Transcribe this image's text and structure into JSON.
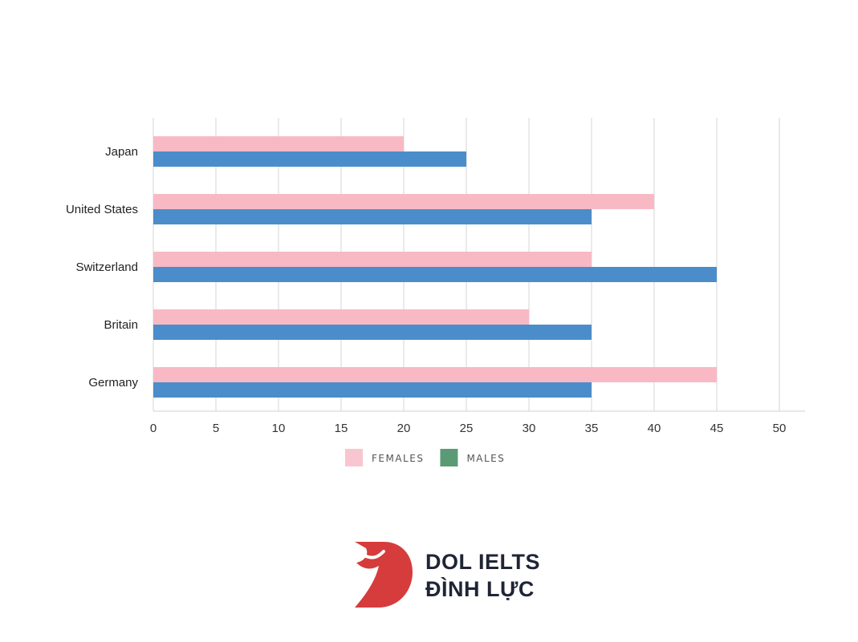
{
  "chart_data": {
    "type": "bar",
    "orientation": "horizontal",
    "categories": [
      "Japan",
      "United States",
      "Switzerland",
      "Britain",
      "Germany"
    ],
    "series": [
      {
        "name": "FEMALES",
        "color": "#f8b9c5",
        "values": [
          20,
          40,
          35,
          30,
          45
        ]
      },
      {
        "name": "MALES",
        "color": "#4b8dcb",
        "values": [
          25,
          35,
          45,
          35,
          35
        ]
      }
    ],
    "legend": [
      {
        "label": "FEMALES",
        "swatch_color": "#f8c6d0"
      },
      {
        "label": "MALES",
        "swatch_color": "#5a9b76"
      }
    ],
    "xlim": [
      0,
      50
    ],
    "xticks": [
      0,
      5,
      10,
      15,
      20,
      25,
      30,
      35,
      40,
      45,
      50
    ],
    "grid": true,
    "legend_position": "bottom"
  },
  "brand": {
    "line1": "DOL IELTS",
    "line2": "ĐÌNH LỰC",
    "color": "#d63c3c"
  }
}
